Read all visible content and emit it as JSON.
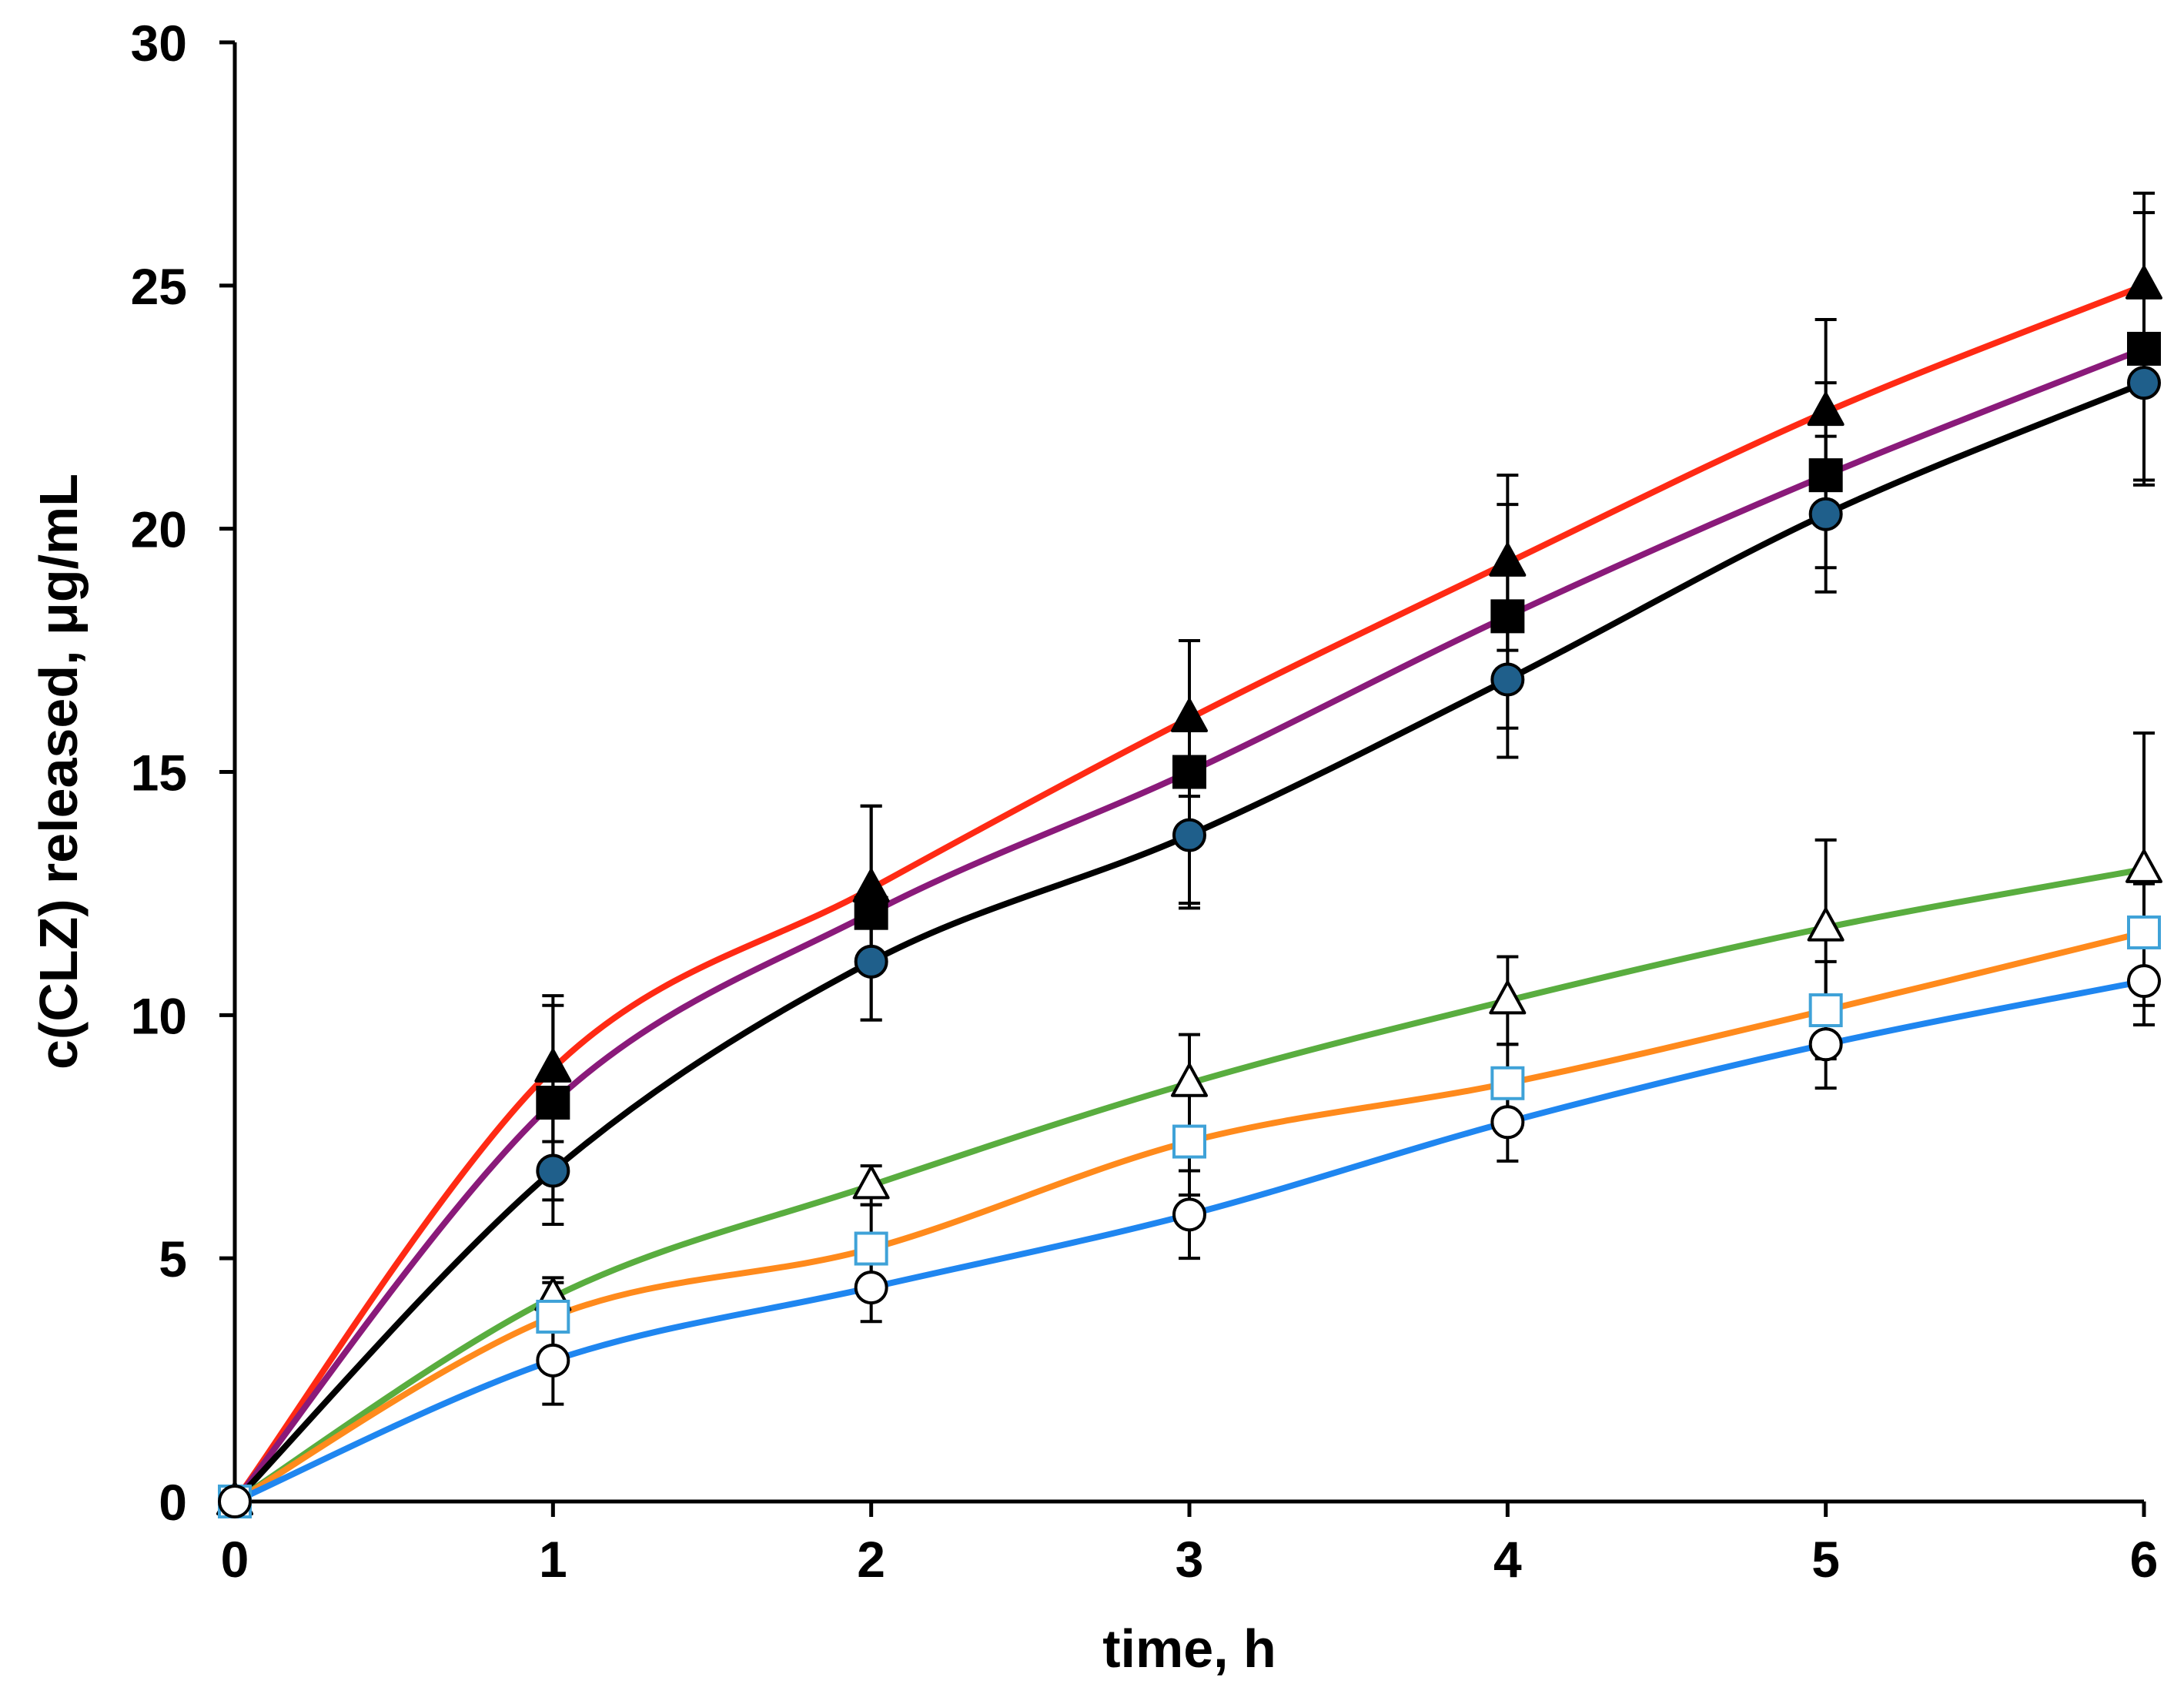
{
  "chart_data": {
    "type": "line",
    "title": "",
    "xlabel": "time, h",
    "ylabel": "c(CLZ) released, μg/mL",
    "xlim": [
      0,
      6
    ],
    "ylim": [
      0,
      30
    ],
    "xticks": [
      0,
      1,
      2,
      3,
      4,
      5,
      6
    ],
    "yticks": [
      0,
      5,
      10,
      15,
      20,
      25,
      30
    ],
    "grid": false,
    "legend": "none",
    "x": [
      0,
      1,
      2,
      3,
      4,
      5,
      6
    ],
    "series": [
      {
        "name": "filled triangle",
        "marker": "triangle",
        "filled": true,
        "marker_color": "#000000",
        "line_color": "#ff2a14",
        "values": [
          0,
          8.9,
          12.6,
          16.1,
          19.3,
          22.4,
          25.0
        ],
        "errors": [
          0,
          1.5,
          1.7,
          1.6,
          1.8,
          1.9,
          1.9
        ]
      },
      {
        "name": "filled square",
        "marker": "square",
        "filled": true,
        "marker_color": "#000000",
        "line_color": "#8a1a7a",
        "values": [
          0,
          8.2,
          12.1,
          15.0,
          18.2,
          21.1,
          23.7
        ],
        "errors": [
          0,
          2.0,
          2.2,
          2.7,
          2.3,
          1.9,
          2.8
        ]
      },
      {
        "name": "filled circle",
        "marker": "circle",
        "filled": true,
        "marker_color": "#1f5f8b",
        "line_color": "#000000",
        "values": [
          0,
          6.8,
          11.1,
          13.7,
          16.9,
          20.3,
          23.0
        ],
        "errors": [
          0,
          1.1,
          1.2,
          1.5,
          1.6,
          1.6,
          2.0
        ]
      },
      {
        "name": "open triangle",
        "marker": "triangle",
        "filled": false,
        "marker_color": "#000000",
        "line_color": "#59ad3f",
        "values": [
          0,
          4.2,
          6.5,
          8.6,
          10.3,
          11.8,
          13.0
        ],
        "errors": [
          0,
          0.4,
          0.4,
          1.0,
          0.9,
          1.8,
          2.8
        ]
      },
      {
        "name": "open square",
        "marker": "square",
        "filled": false,
        "marker_color": "#3fa2d8",
        "line_color": "#ff8a1c",
        "values": [
          0,
          3.8,
          5.2,
          7.4,
          8.6,
          10.1,
          11.7
        ],
        "errors": [
          0,
          0.7,
          0.9,
          1.1,
          0.8,
          1.0,
          1.0
        ]
      },
      {
        "name": "open circle",
        "marker": "circle",
        "filled": false,
        "marker_color": "#000000",
        "line_color": "#1f86f0",
        "values": [
          0,
          2.9,
          4.4,
          5.9,
          7.8,
          9.4,
          10.7
        ],
        "errors": [
          0,
          0.9,
          0.7,
          0.9,
          0.8,
          0.9,
          0.9
        ]
      }
    ]
  }
}
